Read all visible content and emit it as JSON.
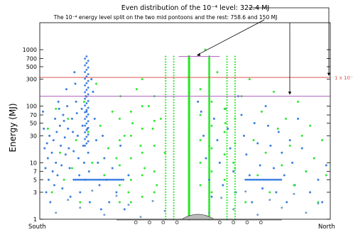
{
  "chart_data": {
    "type": "scatter",
    "title": "Even distribution of the 10⁻⁴ level: 322.4 MJ",
    "subtitle": "The 10⁻⁴ energy level split on the two mid pontoons and the rest: 758.6 and 150 MJ",
    "ylabel": "Energy (MJ)",
    "xlabel": "",
    "side_labels": {
      "left": "South",
      "right": "North"
    },
    "y_scale": "log",
    "ylim": [
      1,
      3000
    ],
    "y_ticks": [
      1,
      3,
      5,
      7,
      10,
      30,
      50,
      70,
      100,
      300,
      500,
      700,
      1000
    ],
    "y_tick_labels": [
      "1",
      "3",
      "5",
      "7",
      "10",
      "30",
      "50",
      "70",
      "100",
      "300",
      "500",
      "700",
      "1000"
    ],
    "threshold_lines": [
      {
        "value": 322.4,
        "label": "1 x 10⁻⁴",
        "color": "#e05555"
      },
      {
        "value": 758.6,
        "label": "",
        "color": "#b060c0",
        "span": "mid"
      },
      {
        "value": 150,
        "label": "",
        "color": "#b060c0"
      }
    ],
    "series": [
      {
        "color": "#3a7ee0",
        "points": [
          [
            0.4,
            80
          ],
          [
            0.5,
            40
          ],
          [
            0.6,
            18
          ],
          [
            0.7,
            8
          ],
          [
            0.8,
            3
          ],
          [
            0.9,
            22
          ],
          [
            1.0,
            12
          ],
          [
            1.1,
            5
          ],
          [
            1.2,
            30
          ],
          [
            1.3,
            2
          ],
          [
            1.5,
            15
          ],
          [
            1.6,
            7
          ],
          [
            1.7,
            25
          ],
          [
            1.8,
            4
          ],
          [
            1.9,
            60
          ],
          [
            2.0,
            10
          ],
          [
            2.1,
            35
          ],
          [
            2.2,
            6
          ],
          [
            2.3,
            120
          ],
          [
            2.4,
            90
          ],
          [
            2.5,
            45
          ],
          [
            2.6,
            20
          ],
          [
            2.7,
            9
          ],
          [
            2.8,
            3.5
          ],
          [
            2.9,
            70
          ],
          [
            3.0,
            55
          ],
          [
            3.1,
            28
          ],
          [
            3.2,
            14
          ],
          [
            3.3,
            200
          ],
          [
            3.4,
            100
          ],
          [
            3.5,
            40
          ],
          [
            3.6,
            18
          ],
          [
            3.7,
            8
          ],
          [
            3.8,
            2.5
          ],
          [
            4.0,
            60
          ],
          [
            4.1,
            35
          ],
          [
            4.2,
            16
          ],
          [
            4.3,
            400
          ],
          [
            4.4,
            250
          ],
          [
            4.5,
            120
          ],
          [
            4.6,
            75
          ],
          [
            4.7,
            30
          ],
          [
            4.8,
            12
          ],
          [
            4.9,
            6
          ],
          [
            5.0,
            3
          ],
          [
            5.2,
            90
          ],
          [
            5.3,
            45
          ],
          [
            5.4,
            20
          ],
          [
            5.5,
            10
          ],
          [
            5.6,
            5
          ],
          [
            5.7,
            150
          ],
          [
            5.8,
            80
          ],
          [
            5.9,
            40
          ],
          [
            6.0,
            15
          ],
          [
            6.1,
            7
          ],
          [
            6.2,
            2
          ],
          [
            6.4,
            300
          ],
          [
            6.6,
            180
          ],
          [
            6.8,
            60
          ],
          [
            7.0,
            25
          ],
          [
            7.2,
            10
          ],
          [
            7.4,
            4
          ],
          [
            7.6,
            1.5
          ],
          [
            7.8,
            30
          ],
          [
            8.0,
            12
          ],
          [
            8.3,
            5
          ],
          [
            8.6,
            2
          ],
          [
            9.0,
            8
          ],
          [
            9.5,
            3
          ],
          [
            10.0,
            20
          ],
          [
            10.5,
            1.5
          ],
          [
            11.0,
            6
          ],
          [
            19.6,
            120
          ],
          [
            20.0,
            80
          ],
          [
            20.3,
            30
          ],
          [
            20.6,
            12
          ],
          [
            21.0,
            5
          ],
          [
            21.3,
            2.5
          ],
          [
            21.6,
            60
          ],
          [
            22.0,
            25
          ],
          [
            22.3,
            10
          ],
          [
            22.7,
            4
          ],
          [
            23.0,
            90
          ],
          [
            23.3,
            40
          ],
          [
            23.6,
            18
          ],
          [
            24.0,
            7
          ],
          [
            24.3,
            3
          ],
          [
            24.6,
            150
          ],
          [
            25.0,
            70
          ],
          [
            25.3,
            30
          ],
          [
            25.6,
            14
          ],
          [
            26.0,
            6
          ],
          [
            26.3,
            2
          ],
          [
            26.6,
            50
          ],
          [
            27.0,
            22
          ],
          [
            27.3,
            9
          ],
          [
            27.6,
            3.5
          ],
          [
            28.0,
            100
          ],
          [
            28.3,
            45
          ],
          [
            28.6,
            20
          ],
          [
            29.0,
            8
          ],
          [
            29.3,
            3
          ],
          [
            29.6,
            35
          ],
          [
            30.0,
            15
          ],
          [
            30.3,
            6
          ],
          [
            30.6,
            2
          ],
          [
            31.0,
            25
          ],
          [
            31.3,
            10
          ],
          [
            31.6,
            4
          ],
          [
            32.0,
            60
          ],
          [
            32.5,
            18
          ],
          [
            33.0,
            7
          ],
          [
            33.5,
            3
          ],
          [
            34.0,
            12
          ],
          [
            34.5,
            5
          ],
          [
            35.0,
            2
          ],
          [
            35.5,
            9
          ]
        ]
      },
      {
        "color": "#2ee82e",
        "points": [
          [
            1.0,
            40
          ],
          [
            1.5,
            3
          ],
          [
            2.0,
            90
          ],
          [
            2.5,
            15
          ],
          [
            3.0,
            5
          ],
          [
            3.5,
            60
          ],
          [
            4.0,
            8
          ],
          [
            4.5,
            25
          ],
          [
            5.0,
            2
          ],
          [
            5.5,
            120
          ],
          [
            6.0,
            35
          ],
          [
            6.5,
            10
          ],
          [
            7.0,
            250
          ],
          [
            7.5,
            45
          ],
          [
            8.0,
            6
          ],
          [
            8.5,
            18
          ],
          [
            9.0,
            80
          ],
          [
            9.5,
            12
          ],
          [
            10.0,
            150
          ],
          [
            10.5,
            30
          ],
          [
            11.0,
            3
          ],
          [
            11.5,
            50
          ],
          [
            12.0,
            200
          ],
          [
            12.5,
            20
          ],
          [
            13.0,
            8
          ],
          [
            13.5,
            100
          ],
          [
            14.0,
            40
          ],
          [
            14.5,
            4
          ],
          [
            15.0,
            60
          ],
          [
            15.5,
            15
          ],
          [
            9.9,
            60
          ],
          [
            9.9,
            25
          ],
          [
            9.9,
            9
          ],
          [
            9.9,
            4
          ],
          [
            9.9,
            2
          ],
          [
            11.3,
            80
          ],
          [
            11.3,
            30
          ],
          [
            11.3,
            12
          ],
          [
            11.3,
            5
          ],
          [
            11.3,
            2
          ],
          [
            12.7,
            300
          ],
          [
            12.7,
            100
          ],
          [
            12.7,
            40
          ],
          [
            12.7,
            15
          ],
          [
            12.7,
            6
          ],
          [
            12.7,
            2.5
          ],
          [
            14.2,
            150
          ],
          [
            14.2,
            55
          ],
          [
            14.2,
            20
          ],
          [
            14.2,
            7
          ],
          [
            14.2,
            3
          ],
          [
            19.9,
            200
          ],
          [
            19.9,
            70
          ],
          [
            19.9,
            25
          ],
          [
            19.9,
            10
          ],
          [
            19.9,
            4
          ],
          [
            21.3,
            120
          ],
          [
            21.3,
            45
          ],
          [
            21.3,
            18
          ],
          [
            21.3,
            7
          ],
          [
            21.3,
            3
          ],
          [
            22.9,
            90
          ],
          [
            22.9,
            35
          ],
          [
            22.9,
            14
          ],
          [
            22.9,
            5
          ],
          [
            24.2,
            60
          ],
          [
            24.2,
            22
          ],
          [
            24.2,
            8
          ],
          [
            24.2,
            3
          ],
          [
            20.5,
            1000
          ],
          [
            21.0,
            20
          ],
          [
            22.0,
            400
          ],
          [
            23.0,
            50
          ],
          [
            24.0,
            10
          ],
          [
            25.0,
            150
          ],
          [
            25.5,
            2
          ],
          [
            26.0,
            300
          ],
          [
            26.5,
            25
          ],
          [
            27.0,
            6
          ],
          [
            27.5,
            80
          ],
          [
            28.0,
            15
          ],
          [
            28.5,
            3
          ],
          [
            29.0,
            180
          ],
          [
            29.5,
            40
          ],
          [
            30.0,
            9
          ],
          [
            30.5,
            60
          ],
          [
            31.0,
            20
          ],
          [
            31.5,
            4
          ],
          [
            32.0,
            120
          ],
          [
            32.5,
            30
          ],
          [
            33.0,
            7
          ],
          [
            33.5,
            45
          ],
          [
            34.0,
            12
          ],
          [
            34.5,
            2
          ],
          [
            35.0,
            25
          ],
          [
            35.5,
            6
          ]
        ]
      },
      {
        "color": "#7a9ec8",
        "points": [
          [
            2.0,
            1.3
          ],
          [
            3.5,
            2.2
          ],
          [
            5.0,
            1.6
          ],
          [
            6.5,
            3.2
          ],
          [
            8.0,
            1.2
          ],
          [
            9.5,
            2.6
          ],
          [
            11.0,
            1.8
          ],
          [
            12.5,
            1.1
          ],
          [
            14.0,
            2.1
          ],
          [
            15.5,
            1.4
          ],
          [
            21.0,
            1.3
          ],
          [
            22.5,
            2.4
          ],
          [
            24.0,
            1.5
          ],
          [
            25.5,
            3.1
          ],
          [
            27.0,
            1.2
          ],
          [
            28.5,
            2.2
          ],
          [
            30.0,
            1.6
          ],
          [
            31.5,
            2.8
          ],
          [
            33.0,
            1.3
          ],
          [
            34.5,
            1.9
          ]
        ]
      }
    ]
  }
}
